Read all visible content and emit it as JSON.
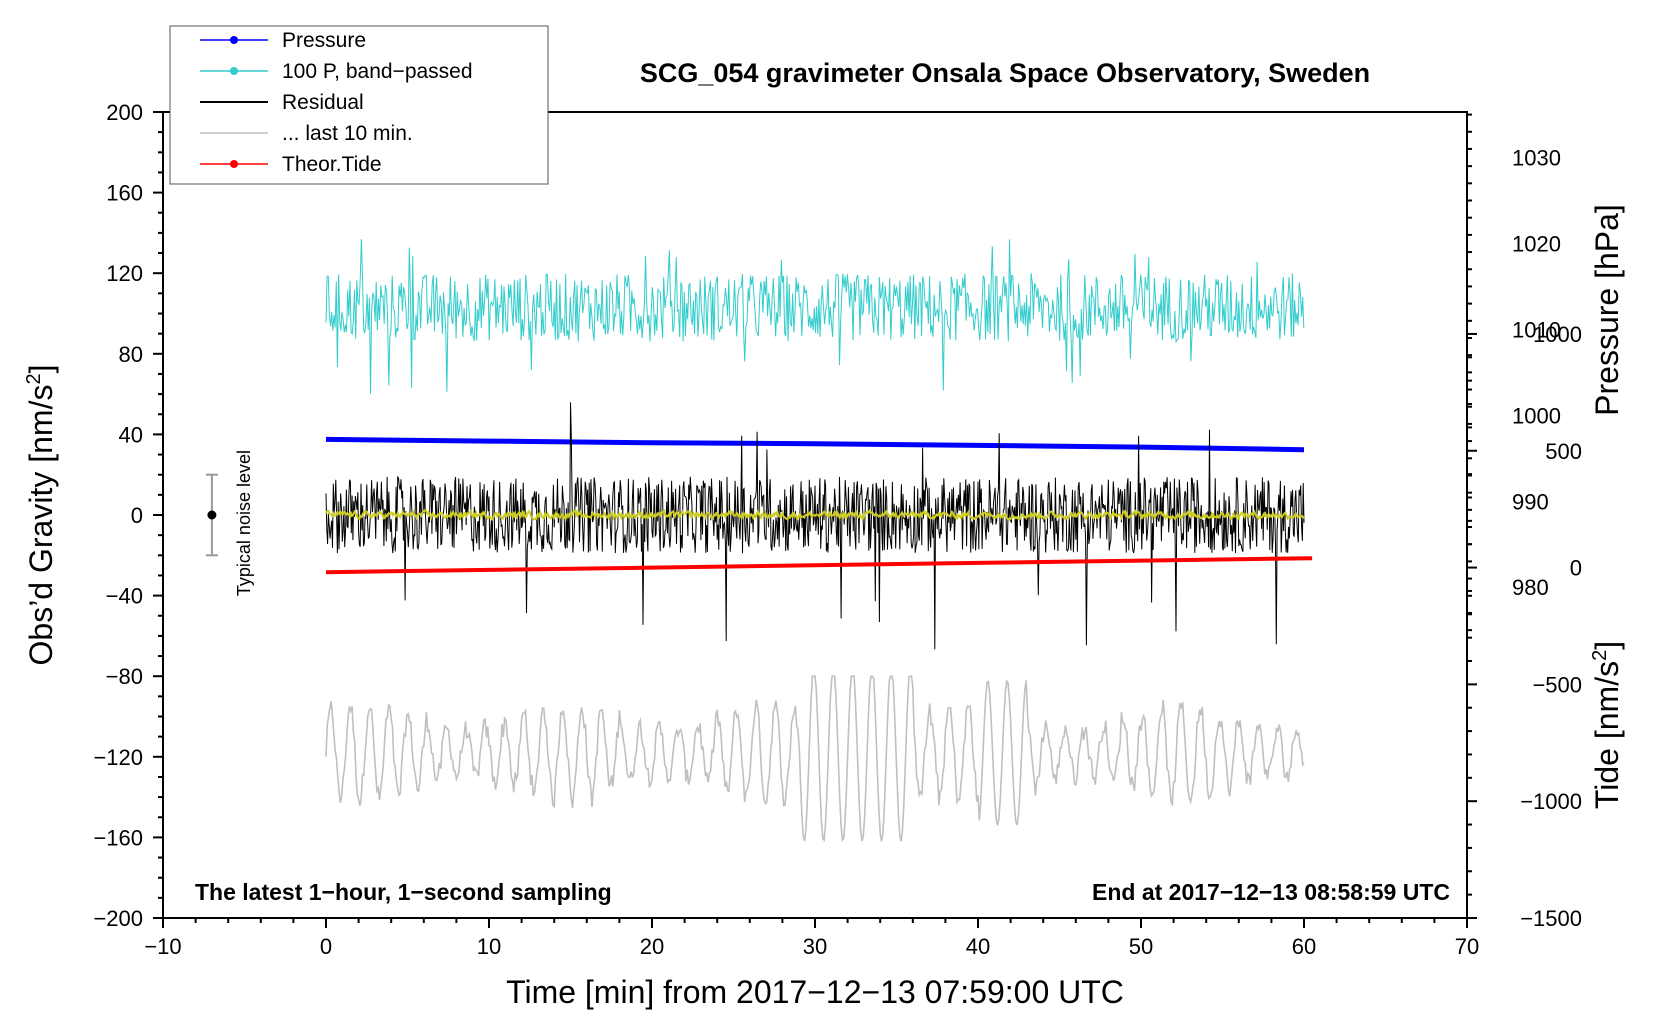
{
  "chart_data": {
    "type": "line",
    "title": "SCG_054 gravimeter Onsala Space Observatory, Sweden",
    "xlabel": "Time [min] from 2017−12−13 07:59:00 UTC",
    "ylabel_left": "Obs’d Gravity [nm/s²]",
    "ylabel_left_main": "Obs’d Gravity [nm/s",
    "ylabel_left_sup": "2",
    "ylabel_left_end": "]",
    "ylabel_pressure": "Pressure [hPa]",
    "ylabel_tide_main": "Tide [nm/s",
    "ylabel_tide_sup": "2",
    "ylabel_tide_end": "]",
    "xlim": [
      -10,
      70
    ],
    "ylim": [
      -200,
      200
    ],
    "x_ticks": [
      -10,
      0,
      10,
      20,
      30,
      40,
      50,
      60,
      70
    ],
    "x_tick_labels": [
      "−10",
      "0",
      "10",
      "20",
      "30",
      "40",
      "50",
      "60",
      "70"
    ],
    "y_ticks": [
      -200,
      -160,
      -120,
      -80,
      -40,
      0,
      40,
      80,
      120,
      160,
      200
    ],
    "y_tick_labels": [
      "−200",
      "−160",
      "−120",
      "−80",
      "−40",
      "0",
      "40",
      "80",
      "120",
      "160",
      "200"
    ],
    "pressure_axis": {
      "ticks": [
        980,
        990,
        1000,
        1010,
        1020,
        1030
      ],
      "tick_labels": [
        "980",
        "990",
        "1000",
        "1010",
        "1020",
        "1030"
      ],
      "ylim": [
        941.5,
        1035.3
      ]
    },
    "tide_axis": {
      "ticks": [
        -1500,
        -1000,
        -500,
        0,
        500,
        1000
      ],
      "tick_labels": [
        "−1500",
        "−1000",
        "−500",
        "0",
        "500",
        "1000"
      ],
      "ylim": [
        -1500,
        1950
      ]
    },
    "footer_left": "The latest 1−hour, 1−second sampling",
    "footer_right": "End at 2017−12−13 08:58:59 UTC",
    "noise_label": "Typical noise level",
    "noise_bar": {
      "x": -7,
      "center": 0,
      "half_range": 20
    },
    "legend": [
      {
        "label": "Pressure",
        "color": "#0000ff",
        "marker": true
      },
      {
        "label": "100 P, band−passed",
        "color": "#33cccc",
        "marker": true
      },
      {
        "label": "Residual",
        "color": "#000000",
        "marker": false
      },
      {
        "label": "... last 10 min.",
        "color": "#c0c0c0",
        "marker": false
      },
      {
        "label": "Theor.Tide",
        "color": "#ff0000",
        "marker": true
      }
    ],
    "series": [
      {
        "name": "Pressure",
        "axis": "pressure",
        "color": "#0000ff",
        "x": [
          0,
          10,
          20,
          30,
          40,
          50,
          60
        ],
        "values": [
          997.2,
          997.0,
          996.8,
          996.7,
          996.5,
          996.3,
          996.0
        ]
      },
      {
        "name": "100 P, band−passed",
        "axis": "left",
        "color": "#33cccc",
        "center": 103,
        "amplitude": 17,
        "spike_max": 139,
        "spike_min": 60,
        "x_range": [
          0,
          60
        ]
      },
      {
        "name": "Residual",
        "axis": "left",
        "color": "#000000",
        "center": 0,
        "amplitude": 19,
        "spike_max": 56,
        "spike_min": -68,
        "x_range": [
          0,
          60
        ]
      },
      {
        "name": "Residual smoothed",
        "axis": "left",
        "color": "#cccc22",
        "center": 0,
        "amplitude": 3,
        "x_range": [
          0,
          60
        ]
      },
      {
        "name": "... last 10 min.",
        "axis": "left",
        "color": "#c0c0c0",
        "center": -118,
        "amplitude": 20,
        "spike_max": -80,
        "spike_min": -175,
        "x_range": [
          0,
          60
        ]
      },
      {
        "name": "Theor.Tide",
        "axis": "tide",
        "color": "#ff0000",
        "x": [
          0,
          10,
          20,
          30,
          40,
          50,
          60.5
        ],
        "values": [
          -20,
          -10,
          0,
          10,
          20,
          30,
          40
        ]
      }
    ]
  }
}
